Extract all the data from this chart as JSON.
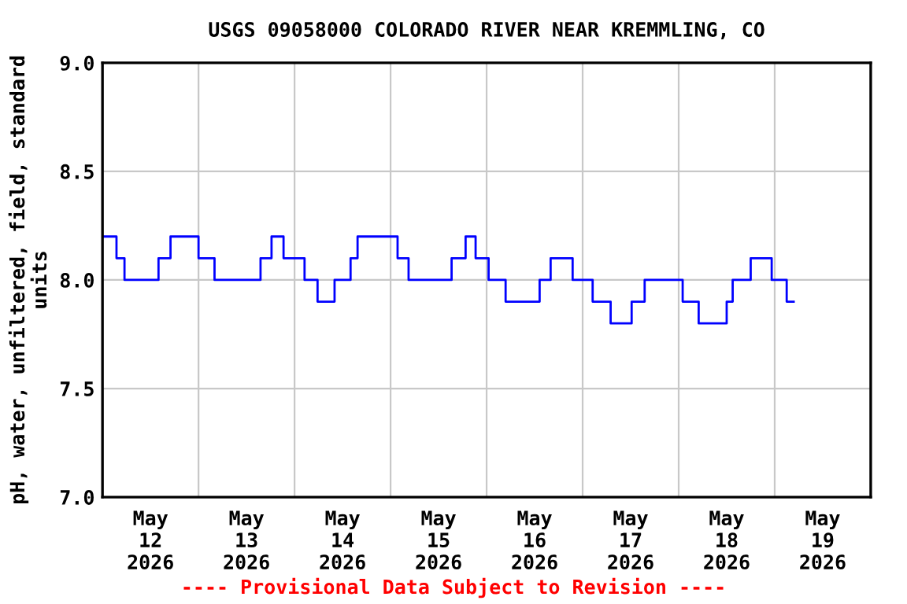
{
  "chart_data": {
    "type": "step",
    "title": "USGS 09058000 COLORADO RIVER NEAR KREMMLING, CO",
    "ylabel": "pH, water, unfiltered, field, standard\nunits",
    "annotations": [
      "---- Provisional Data Subject to Revision ----"
    ],
    "series": [
      {
        "color": "#0000ff",
        "x": [
          "2026-05-12T00:00",
          "2026-05-12T03:30",
          "2026-05-12T05:30",
          "2026-05-12T14:00",
          "2026-05-12T17:00",
          "2026-05-13T00:00",
          "2026-05-13T04:00",
          "2026-05-13T15:30",
          "2026-05-13T18:15",
          "2026-05-13T21:15",
          "2026-05-14T02:30",
          "2026-05-14T05:45",
          "2026-05-14T10:00",
          "2026-05-14T14:00",
          "2026-05-14T15:45",
          "2026-05-15T01:45",
          "2026-05-15T04:30",
          "2026-05-15T15:15",
          "2026-05-15T18:45",
          "2026-05-15T21:15",
          "2026-05-16T00:30",
          "2026-05-16T04:45",
          "2026-05-16T13:15",
          "2026-05-16T16:00",
          "2026-05-16T21:30",
          "2026-05-17T02:30",
          "2026-05-17T07:00",
          "2026-05-17T12:15",
          "2026-05-17T15:30",
          "2026-05-18T01:00",
          "2026-05-18T05:00",
          "2026-05-18T12:00",
          "2026-05-18T13:30",
          "2026-05-18T18:00",
          "2026-05-18T23:15",
          "2026-05-19T03:00",
          "2026-05-19T04:45"
        ],
        "values": [
          8.2,
          8.1,
          8.0,
          8.1,
          8.2,
          8.1,
          8.0,
          8.1,
          8.2,
          8.1,
          8.0,
          7.9,
          8.0,
          8.1,
          8.2,
          8.1,
          8.0,
          8.1,
          8.2,
          8.1,
          8.0,
          7.9,
          8.0,
          8.1,
          8.0,
          7.9,
          7.8,
          7.9,
          8.0,
          7.9,
          7.8,
          7.9,
          8.0,
          8.1,
          8.0,
          7.9,
          7.9
        ]
      }
    ],
    "xlim": [
      "2026-05-12",
      "2026-05-20"
    ],
    "xticks": [
      {
        "value": "2026-05-12T12:00",
        "label": "May\n12\n2026"
      },
      {
        "value": "2026-05-13T12:00",
        "label": "May\n13\n2026"
      },
      {
        "value": "2026-05-14T12:00",
        "label": "May\n14\n2026"
      },
      {
        "value": "2026-05-15T12:00",
        "label": "May\n15\n2026"
      },
      {
        "value": "2026-05-16T12:00",
        "label": "May\n16\n2026"
      },
      {
        "value": "2026-05-17T12:00",
        "label": "May\n17\n2026"
      },
      {
        "value": "2026-05-18T12:00",
        "label": "May\n18\n2026"
      },
      {
        "value": "2026-05-19T12:00",
        "label": "May\n19\n2026"
      },
      {
        "value": "2026-05-13",
        "label": null
      },
      {
        "value": "2026-05-14",
        "label": null
      },
      {
        "value": "2026-05-15",
        "label": null
      },
      {
        "value": "2026-05-16",
        "label": null
      },
      {
        "value": "2026-05-17",
        "label": null
      },
      {
        "value": "2026-05-18",
        "label": null
      },
      {
        "value": "2026-05-19",
        "label": null
      }
    ],
    "ylim": [
      7.0,
      9.0
    ],
    "yticks": [
      {
        "value": 7.0,
        "label": "7.0"
      },
      {
        "value": 7.5,
        "label": "7.5"
      },
      {
        "value": 8.0,
        "label": "8.0"
      },
      {
        "value": 8.5,
        "label": "8.5"
      },
      {
        "value": 9.0,
        "label": "9.0"
      }
    ],
    "grid": true,
    "marker": "none",
    "line_style": "solid"
  }
}
